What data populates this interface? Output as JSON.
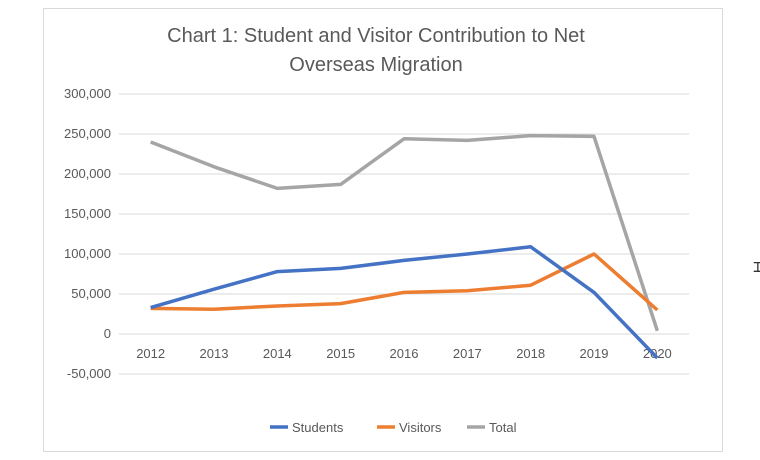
{
  "chart_data": {
    "type": "line",
    "title": "Chart 1: Student and Visitor Contribution to Net Overseas Migration",
    "title_lines": [
      "Chart 1: Student and Visitor Contribution to Net",
      "Overseas Migration"
    ],
    "categories": [
      "2012",
      "2013",
      "2014",
      "2015",
      "2016",
      "2017",
      "2018",
      "2019",
      "2020"
    ],
    "ylim": [
      -50000,
      300000
    ],
    "yticks": [
      -50000,
      0,
      50000,
      100000,
      150000,
      200000,
      250000,
      300000
    ],
    "ytick_labels": [
      "-50,000",
      "0",
      "50,000",
      "100,000",
      "150,000",
      "200,000",
      "250,000",
      "300,000"
    ],
    "grid": true,
    "legend_position": "bottom",
    "series": [
      {
        "name": "Students",
        "color": "#4472c4",
        "values": [
          33000,
          56000,
          78000,
          82000,
          92000,
          100000,
          109000,
          52000,
          -30000
        ]
      },
      {
        "name": "Visitors",
        "color": "#ed7d31",
        "values": [
          32000,
          31000,
          35000,
          38000,
          52000,
          54000,
          61000,
          100000,
          30000
        ]
      },
      {
        "name": "Total",
        "color": "#a5a5a5",
        "values": [
          240000,
          209000,
          182000,
          187000,
          244000,
          242000,
          248000,
          247000,
          4000
        ]
      }
    ]
  },
  "cursor_icon": "text-cursor-icon"
}
